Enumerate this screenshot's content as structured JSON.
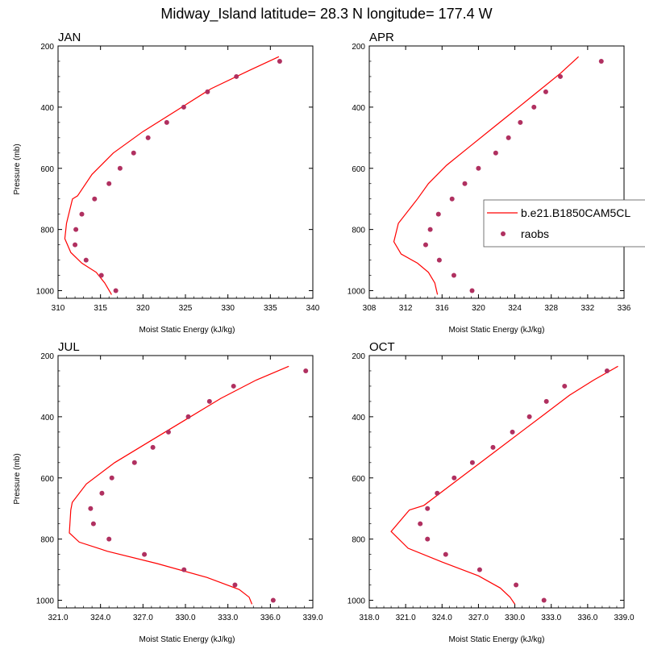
{
  "figure": {
    "title": "Midway_Island  latitude= 28.3 N longitude= 177.4 W"
  },
  "legend": {
    "model_label": "b.e21.B1850CAM5CL",
    "obs_label": "raobs"
  },
  "colors": {
    "model": "#ff0000",
    "obs": "#b03060",
    "axis": "#000000"
  },
  "chart_data": [
    {
      "type": "line",
      "panel": "JAN",
      "xlabel": "Moist Static Energy (kJ/kg)",
      "ylabel": "Pressure (mb)",
      "xlim": [
        310,
        340
      ],
      "xticks": [
        310,
        315,
        320,
        325,
        330,
        335,
        340
      ],
      "xtick_labels": [
        "310",
        "315",
        "320",
        "325",
        "330",
        "335",
        "340"
      ],
      "ylim": [
        200,
        1025
      ],
      "y_reversed": true,
      "yticks": [
        200,
        400,
        600,
        800,
        1000
      ],
      "ytick_labels": [
        "200",
        "400",
        "600",
        "800",
        "1000"
      ],
      "series": [
        {
          "name": "b.e21.B1850CAM5CL",
          "kind": "line",
          "x": [
            336,
            332.5,
            328,
            324,
            320,
            316.5,
            314,
            312.3,
            311.7,
            311,
            310.8,
            311.5,
            312.8,
            314.5,
            315.5,
            316.3
          ],
          "y": [
            235,
            280,
            340,
            410,
            480,
            550,
            620,
            690,
            700,
            780,
            830,
            875,
            910,
            940,
            975,
            1013
          ]
        },
        {
          "name": "raobs",
          "kind": "scatter",
          "x": [
            336.1,
            331,
            327.6,
            324.8,
            322.8,
            320.6,
            318.9,
            317.3,
            316,
            314.3,
            312.8,
            312.1,
            312,
            313.3,
            315.1,
            316.8
          ],
          "y": [
            250,
            300,
            350,
            400,
            450,
            500,
            550,
            600,
            650,
            700,
            750,
            800,
            850,
            900,
            950,
            1000
          ]
        }
      ]
    },
    {
      "type": "line",
      "panel": "APR",
      "xlabel": "Moist Static Energy (kJ/kg)",
      "ylabel": "",
      "xlim": [
        308,
        336
      ],
      "xticks": [
        308,
        312,
        316,
        320,
        324,
        328,
        332,
        336
      ],
      "xtick_labels": [
        "308",
        "312",
        "316",
        "320",
        "324",
        "328",
        "332",
        "336"
      ],
      "ylim": [
        200,
        1025
      ],
      "y_reversed": true,
      "yticks": [
        200,
        400,
        600,
        800,
        1000
      ],
      "ytick_labels": [
        "200",
        "400",
        "600",
        "800",
        "1000"
      ],
      "series": [
        {
          "name": "b.e21.B1850CAM5CL",
          "kind": "line",
          "x": [
            331,
            329,
            326.5,
            324,
            321.5,
            319,
            316.5,
            314.5,
            313.3,
            311.2,
            310.7,
            311.5,
            313.3,
            314.5,
            315.2,
            315.5
          ],
          "y": [
            235,
            290,
            350,
            410,
            470,
            530,
            590,
            650,
            700,
            780,
            840,
            880,
            910,
            940,
            975,
            1013
          ]
        },
        {
          "name": "raobs",
          "kind": "scatter",
          "x": [
            333.5,
            329,
            327.4,
            326.1,
            324.6,
            323.3,
            321.9,
            320,
            318.5,
            317.1,
            315.6,
            314.7,
            314.2,
            315.7,
            317.3,
            319.3
          ],
          "y": [
            250,
            300,
            350,
            400,
            450,
            500,
            550,
            600,
            650,
            700,
            750,
            800,
            850,
            900,
            950,
            1000
          ]
        }
      ]
    },
    {
      "type": "line",
      "panel": "JUL",
      "xlabel": "Moist Static Energy (kJ/kg)",
      "ylabel": "Pressure (mb)",
      "xlim": [
        321,
        339
      ],
      "xticks": [
        321,
        324,
        327,
        330,
        333,
        336,
        339
      ],
      "xtick_labels": [
        "321.0",
        "324.0",
        "327.0",
        "330.0",
        "333.0",
        "336.0",
        "339.0"
      ],
      "ylim": [
        200,
        1025
      ],
      "y_reversed": true,
      "yticks": [
        200,
        400,
        600,
        800,
        1000
      ],
      "ytick_labels": [
        "200",
        "400",
        "600",
        "800",
        "1000"
      ],
      "series": [
        {
          "name": "b.e21.B1850CAM5CL",
          "kind": "line",
          "x": [
            337.3,
            335,
            332.5,
            330,
            327.5,
            325,
            323,
            322,
            321.9,
            321.8,
            322.5,
            324.5,
            328,
            331.5,
            333.8,
            334.5,
            334.7
          ],
          "y": [
            235,
            280,
            340,
            410,
            480,
            550,
            620,
            680,
            705,
            780,
            810,
            840,
            880,
            925,
            965,
            990,
            1013
          ]
        },
        {
          "name": "raobs",
          "kind": "scatter",
          "x": [
            338.5,
            333.4,
            331.7,
            330.2,
            328.8,
            327.7,
            326.4,
            324.8,
            324.1,
            323.3,
            323.5,
            324.6,
            327.1,
            329.9,
            333.5,
            336.2
          ],
          "y": [
            250,
            300,
            350,
            400,
            450,
            500,
            550,
            600,
            650,
            700,
            750,
            800,
            850,
            900,
            950,
            1000
          ]
        }
      ]
    },
    {
      "type": "line",
      "panel": "OCT",
      "xlabel": "Moist Static Energy (kJ/kg)",
      "ylabel": "",
      "xlim": [
        318,
        339
      ],
      "xticks": [
        318,
        321,
        324,
        327,
        330,
        333,
        336,
        339
      ],
      "xtick_labels": [
        "318.0",
        "321.0",
        "324.0",
        "327.0",
        "330.0",
        "333.0",
        "336.0",
        "339.0"
      ],
      "ylim": [
        200,
        1025
      ],
      "y_reversed": true,
      "yticks": [
        200,
        400,
        600,
        800,
        1000
      ],
      "ytick_labels": [
        "200",
        "400",
        "600",
        "800",
        "1000"
      ],
      "series": [
        {
          "name": "b.e21.B1850CAM5CL",
          "kind": "line",
          "x": [
            338.5,
            336.5,
            334.5,
            332.5,
            330.5,
            328.5,
            326.5,
            324.5,
            322.5,
            321.3,
            319.8,
            321.2,
            324,
            327,
            328.8,
            329.6,
            330
          ],
          "y": [
            235,
            280,
            330,
            390,
            450,
            510,
            570,
            630,
            690,
            705,
            775,
            830,
            875,
            920,
            960,
            990,
            1013
          ]
        },
        {
          "name": "raobs",
          "kind": "scatter",
          "x": [
            337.6,
            334.1,
            332.6,
            331.2,
            329.8,
            328.2,
            326.5,
            325,
            323.6,
            322.8,
            322.2,
            322.8,
            324.3,
            327.1,
            330.1,
            332.4
          ],
          "y": [
            250,
            300,
            350,
            400,
            450,
            500,
            550,
            600,
            650,
            700,
            750,
            800,
            850,
            900,
            950,
            1000
          ]
        }
      ]
    }
  ]
}
